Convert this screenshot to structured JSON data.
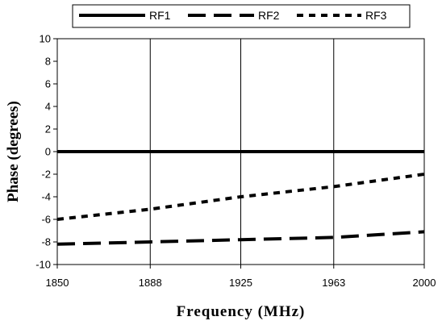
{
  "chart_data": {
    "type": "line",
    "title": "",
    "xlabel": "Frequency (MHz)",
    "ylabel": "Phase (degrees)",
    "x": [
      1850,
      1888,
      1925,
      1963,
      2000
    ],
    "x_tick_labels": [
      "1850",
      "1888",
      "1925",
      "1963",
      "2000"
    ],
    "xlim": [
      1850,
      2000
    ],
    "ylim": [
      -10,
      10
    ],
    "y_ticks": [
      -10,
      -8,
      -6,
      -4,
      -2,
      0,
      2,
      4,
      6,
      8,
      10
    ],
    "y_tick_labels": [
      "-10",
      "-8",
      "-6",
      "-4",
      "-2",
      "0",
      "2",
      "4",
      "6",
      "8",
      "10"
    ],
    "grid": "vertical",
    "legend_position": "top",
    "series": [
      {
        "name": "RF1",
        "style": "solid",
        "color": "#000000",
        "values": [
          0,
          0,
          0,
          0,
          0
        ]
      },
      {
        "name": "RF2",
        "style": "long-dash",
        "color": "#000000",
        "values": [
          -8.2,
          -8.0,
          -7.8,
          -7.6,
          -7.1
        ]
      },
      {
        "name": "RF3",
        "style": "short-dash",
        "color": "#000000",
        "values": [
          -6.0,
          -5.1,
          -4.0,
          -3.1,
          -2.0
        ]
      }
    ]
  }
}
